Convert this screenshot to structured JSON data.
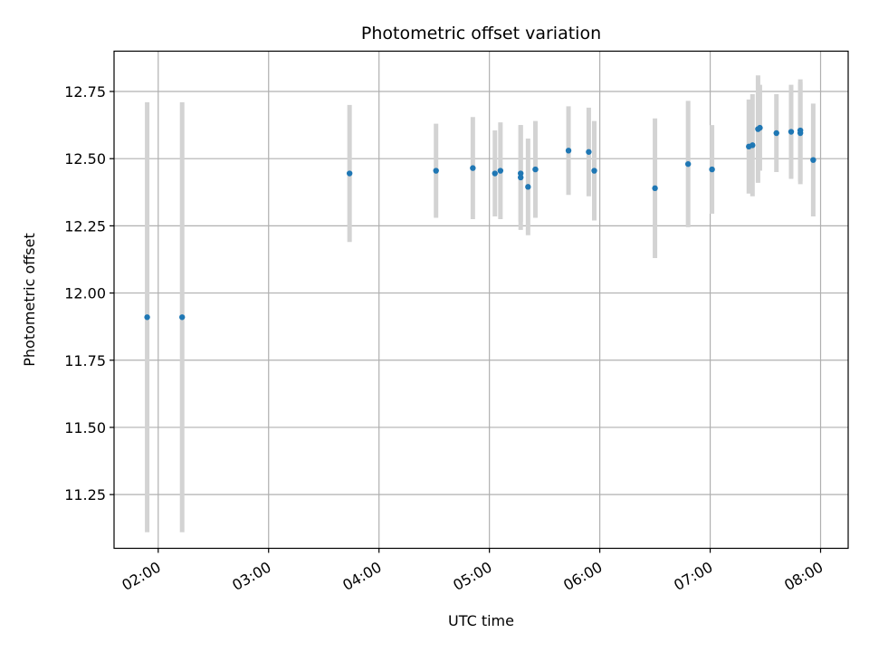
{
  "chart_data": {
    "type": "scatter",
    "title": "Photometric offset variation",
    "xlabel": "UTC time",
    "ylabel": "Photometric offset",
    "xlim": [
      "01:36",
      "08:15"
    ],
    "ylim": [
      11.05,
      12.9
    ],
    "x_ticks": [
      "02:00",
      "03:00",
      "04:00",
      "05:00",
      "06:00",
      "07:00",
      "08:00"
    ],
    "y_ticks": [
      "11.25",
      "11.50",
      "11.75",
      "12.00",
      "12.25",
      "12.50",
      "12.75"
    ],
    "grid": true,
    "marker_color": "#1f77b4",
    "errorbar_color": "#d3d3d3",
    "points": [
      {
        "t": "01:54",
        "y": 11.91,
        "err": 0.8
      },
      {
        "t": "02:13",
        "y": 11.91,
        "err": 0.8
      },
      {
        "t": "03:44",
        "y": 12.445,
        "err": 0.255
      },
      {
        "t": "04:31",
        "y": 12.455,
        "err": 0.175
      },
      {
        "t": "04:51",
        "y": 12.465,
        "err": 0.19
      },
      {
        "t": "05:03",
        "y": 12.445,
        "err": 0.16
      },
      {
        "t": "05:06",
        "y": 12.455,
        "err": 0.18
      },
      {
        "t": "05:17",
        "y": 12.43,
        "err": 0.195
      },
      {
        "t": "05:17",
        "y": 12.445,
        "err": 0.18
      },
      {
        "t": "05:21",
        "y": 12.395,
        "err": 0.18
      },
      {
        "t": "05:25",
        "y": 12.46,
        "err": 0.18
      },
      {
        "t": "05:43",
        "y": 12.53,
        "err": 0.165
      },
      {
        "t": "05:54",
        "y": 12.525,
        "err": 0.165
      },
      {
        "t": "05:57",
        "y": 12.455,
        "err": 0.185
      },
      {
        "t": "06:30",
        "y": 12.39,
        "err": 0.26
      },
      {
        "t": "06:48",
        "y": 12.48,
        "err": 0.235
      },
      {
        "t": "07:01",
        "y": 12.46,
        "err": 0.165
      },
      {
        "t": "07:21",
        "y": 12.545,
        "err": 0.175
      },
      {
        "t": "07:23",
        "y": 12.55,
        "err": 0.19
      },
      {
        "t": "07:26",
        "y": 12.61,
        "err": 0.2
      },
      {
        "t": "07:27",
        "y": 12.615,
        "err": 0.16
      },
      {
        "t": "07:36",
        "y": 12.595,
        "err": 0.145
      },
      {
        "t": "07:44",
        "y": 12.6,
        "err": 0.175
      },
      {
        "t": "07:49",
        "y": 12.605,
        "err": 0.19
      },
      {
        "t": "07:49",
        "y": 12.595,
        "err": 0.19
      },
      {
        "t": "07:56",
        "y": 12.495,
        "err": 0.21
      }
    ]
  }
}
